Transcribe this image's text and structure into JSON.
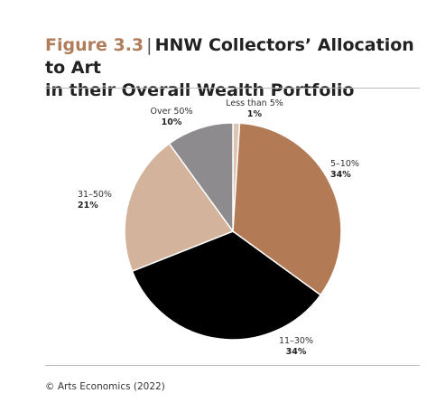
{
  "header": {
    "figure_label": "Figure 3.3",
    "separator": "|",
    "title_line1": "HNW Collectors’ Allocation to Art",
    "title_line2": "in their Overall Wealth Portfolio"
  },
  "footer": {
    "source": "© Arts Economics (2022)"
  },
  "chart_data": {
    "type": "pie",
    "title": "HNW Collectors’ Allocation to Art in their Overall Wealth Portfolio",
    "slices": [
      {
        "label": "Less than 5%",
        "value": 1,
        "value_label": "1%",
        "color": "#dcc6b3"
      },
      {
        "label": "5–10%",
        "value": 34,
        "value_label": "34%",
        "color": "#b37a56"
      },
      {
        "label": "11–30%",
        "value": 34,
        "value_label": "34%",
        "color": "#000000"
      },
      {
        "label": "31–50%",
        "value": 21,
        "value_label": "21%",
        "color": "#d3b39c"
      },
      {
        "label": "Over 50%",
        "value": 10,
        "value_label": "10%",
        "color": "#8e8b8f"
      }
    ],
    "start": "12 o'clock",
    "direction": "clockwise",
    "legend": "none (direct labels)"
  }
}
